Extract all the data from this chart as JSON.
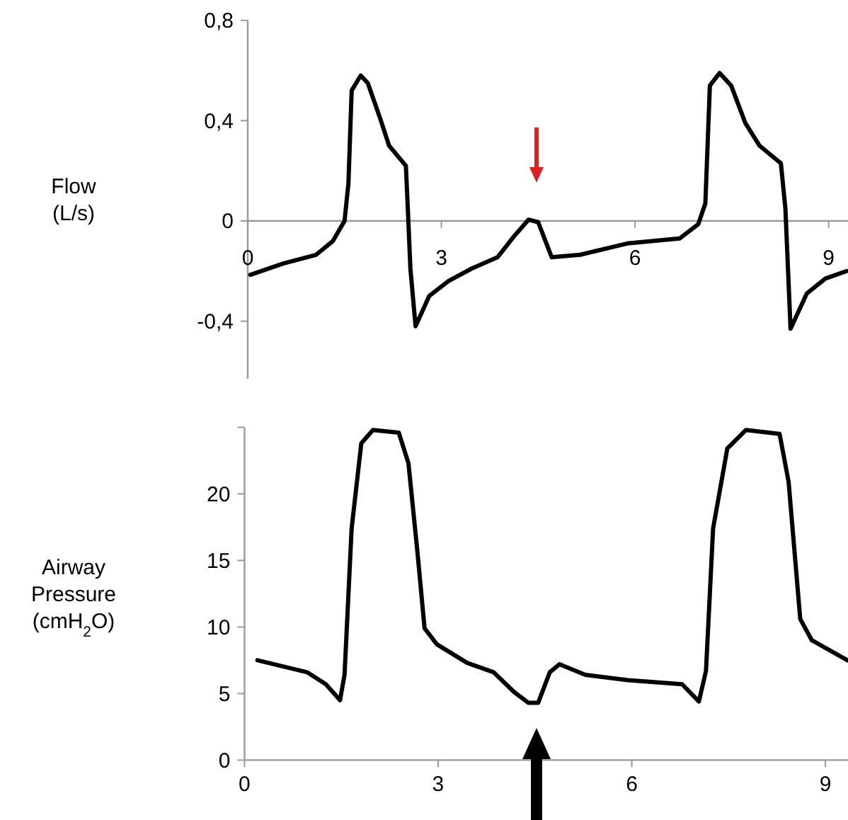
{
  "chart_data": [
    {
      "type": "line",
      "ylabel": "Flow\n(L/s)",
      "xlim": [
        0,
        9.3
      ],
      "ylim": [
        -0.63,
        0.8
      ],
      "xticks": [
        0,
        3,
        6,
        9
      ],
      "yticks": [
        {
          "value": 0.8,
          "label": "0,8"
        },
        {
          "value": 0.4,
          "label": "0,4"
        },
        0,
        {
          "value": -0.4,
          "label": "-0,4"
        }
      ],
      "series": [
        {
          "color": "#000000",
          "x": [
            0.04,
            0.55,
            1.06,
            1.32,
            1.5,
            1.56,
            1.61,
            1.75,
            1.86,
            2.05,
            2.19,
            2.45,
            2.48,
            2.52,
            2.6,
            2.81,
            3.11,
            3.47,
            3.87,
            4.13,
            4.35,
            4.5,
            4.71,
            5.15,
            5.88,
            6.69,
            6.98,
            7.09,
            7.16,
            7.31,
            7.49,
            7.71,
            7.93,
            8.26,
            8.33,
            8.37,
            8.41,
            8.66,
            8.95,
            9.28
          ],
          "values": [
            -0.215,
            -0.17,
            -0.135,
            -0.08,
            0,
            0.15,
            0.52,
            0.58,
            0.55,
            0.41,
            0.3,
            0.22,
            0.05,
            -0.19,
            -0.42,
            -0.3,
            -0.24,
            -0.19,
            -0.145,
            -0.06,
            0.005,
            -0.005,
            -0.145,
            -0.135,
            -0.09,
            -0.07,
            -0.013,
            0.07,
            0.54,
            0.59,
            0.54,
            0.39,
            0.3,
            0.23,
            0.05,
            -0.19,
            -0.43,
            -0.29,
            -0.23,
            -0.2
          ]
        }
      ]
    },
    {
      "type": "line",
      "ylabel": "Airway\nPressure\n(cmH$_{2}$O)",
      "xlim": [
        0,
        9.35
      ],
      "ylim": [
        0,
        25
      ],
      "xticks": [
        0,
        3,
        6,
        9
      ],
      "yticks": [
        0,
        5,
        10,
        15,
        20,
        {
          "value": 25,
          "label": null
        }
      ],
      "series": [
        {
          "color": "#000000",
          "x": [
            0.2,
            0.97,
            1.26,
            1.48,
            1.55,
            1.66,
            1.81,
            1.99,
            2.39,
            2.54,
            2.68,
            2.79,
            2.98,
            3.45,
            3.86,
            4.18,
            4.4,
            4.55,
            4.73,
            4.88,
            5.28,
            5.94,
            6.78,
            7.04,
            7.15,
            7.26,
            7.48,
            7.77,
            8.29,
            8.43,
            8.61,
            8.79,
            9.34
          ],
          "values": [
            7.5,
            6.6,
            5.7,
            4.5,
            6.4,
            17.4,
            23.8,
            24.8,
            24.6,
            22.3,
            15.6,
            9.9,
            8.7,
            7.3,
            6.6,
            5.1,
            4.3,
            4.3,
            6.6,
            7.2,
            6.4,
            6.0,
            5.7,
            4.4,
            6.7,
            17.4,
            23.4,
            24.8,
            24.5,
            20.9,
            10.6,
            9.0,
            7.5
          ]
        }
      ]
    }
  ]
}
